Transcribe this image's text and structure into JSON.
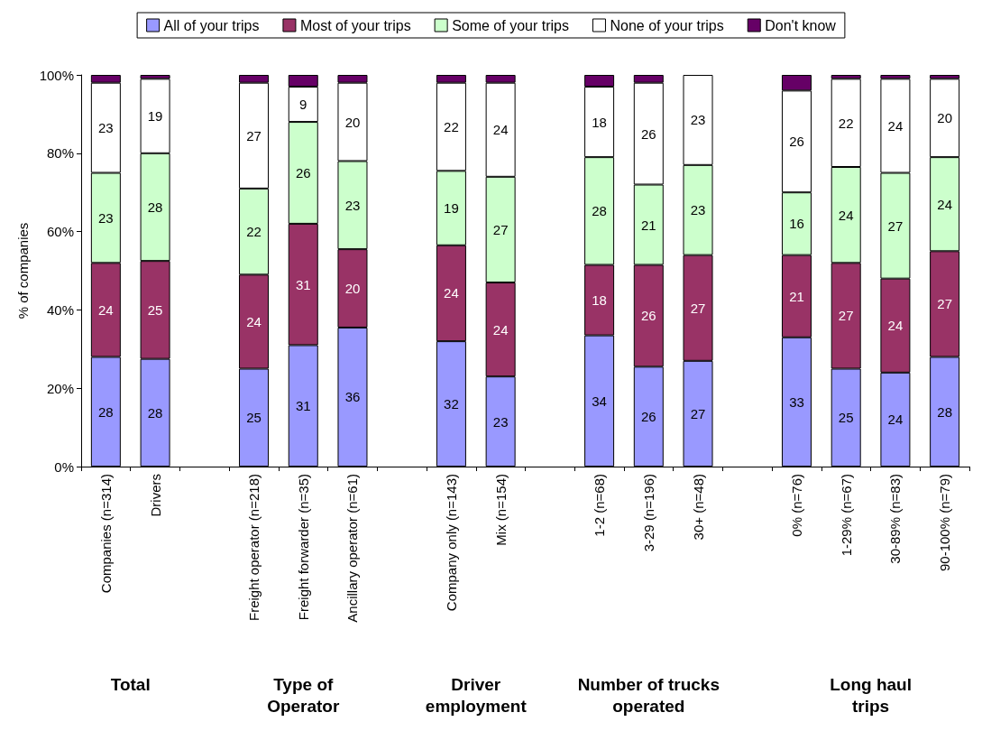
{
  "chart_data": {
    "type": "bar",
    "stacked": true,
    "ylabel": "% of companies",
    "categories": [
      "Companies (n=314)",
      "Drivers",
      null,
      "Freight operator (n=218)",
      "Freight forwarder (n=35)",
      "Ancillary operator (n=61)",
      null,
      "Company only (n=143)",
      "Mix (n=154)",
      null,
      "1-2 (n=68)",
      "3-29 (n=196)",
      "30+ (n=48)",
      null,
      "0% (n=76)",
      "1-29% (n=67)",
      "30-89% (n=83)",
      "90-100% (n=79)"
    ],
    "series": [
      {
        "name": "All of your trips",
        "color": "#9999ff",
        "values": [
          28,
          27.5,
          null,
          25,
          31,
          35.5,
          null,
          32,
          23,
          null,
          33.5,
          25.5,
          27,
          null,
          33,
          25,
          24,
          28
        ],
        "value_labels": [
          "28",
          "28",
          null,
          "25",
          "31",
          "36",
          null,
          "32",
          "23",
          null,
          "34",
          "26",
          "27",
          null,
          "33",
          "25",
          "24",
          "28"
        ]
      },
      {
        "name": "Most of your trips",
        "color": "#993366",
        "values": [
          24,
          25,
          null,
          24,
          31,
          20,
          null,
          24.5,
          24,
          null,
          18,
          26,
          27,
          null,
          21,
          27,
          24,
          27
        ],
        "value_labels": [
          "24",
          "25",
          null,
          "24",
          "31",
          "20",
          null,
          "24",
          "24",
          null,
          "18",
          "26",
          "27",
          null,
          "21",
          "27",
          "24",
          "27"
        ]
      },
      {
        "name": "Some of your trips",
        "color": "#ccffcc",
        "values": [
          23,
          27.5,
          null,
          22,
          26,
          22.5,
          null,
          19,
          27,
          null,
          27.5,
          20.5,
          23,
          null,
          16,
          24.5,
          27,
          24
        ],
        "value_labels": [
          "23",
          "28",
          null,
          "22",
          "26",
          "23",
          null,
          "19",
          "27",
          null,
          "28",
          "21",
          "23",
          null,
          "16",
          "24",
          "27",
          "24"
        ]
      },
      {
        "name": "None of your trips",
        "color": "#ffffff",
        "values": [
          23,
          19,
          null,
          27,
          9,
          20,
          null,
          22.5,
          24,
          null,
          18,
          26,
          23,
          null,
          26,
          22.5,
          24,
          20
        ],
        "value_labels": [
          "23",
          "19",
          null,
          "27",
          "9",
          "20",
          null,
          "22",
          "24",
          null,
          "18",
          "26",
          "23",
          null,
          "26",
          "22",
          "24",
          "20"
        ]
      },
      {
        "name": "Don't know",
        "color": "#660066",
        "values": [
          2,
          1,
          null,
          2,
          3,
          2,
          null,
          2,
          2,
          null,
          3,
          2,
          null,
          null,
          4,
          1,
          1,
          1
        ]
      }
    ],
    "ylim": [
      0,
      100
    ],
    "yticks": [
      {
        "value": 0,
        "label": "0%"
      },
      {
        "value": 20,
        "label": "20%"
      },
      {
        "value": 40,
        "label": "40%"
      },
      {
        "value": 60,
        "label": "60%"
      },
      {
        "value": 80,
        "label": "80%"
      },
      {
        "value": 100,
        "label": "100%"
      }
    ],
    "grid": false,
    "legend": "top",
    "annotations": [
      "Total",
      "Type of\nOperator",
      "Driver\nemployment",
      "Number of trucks\noperated",
      "Long haul\ntrips"
    ]
  }
}
